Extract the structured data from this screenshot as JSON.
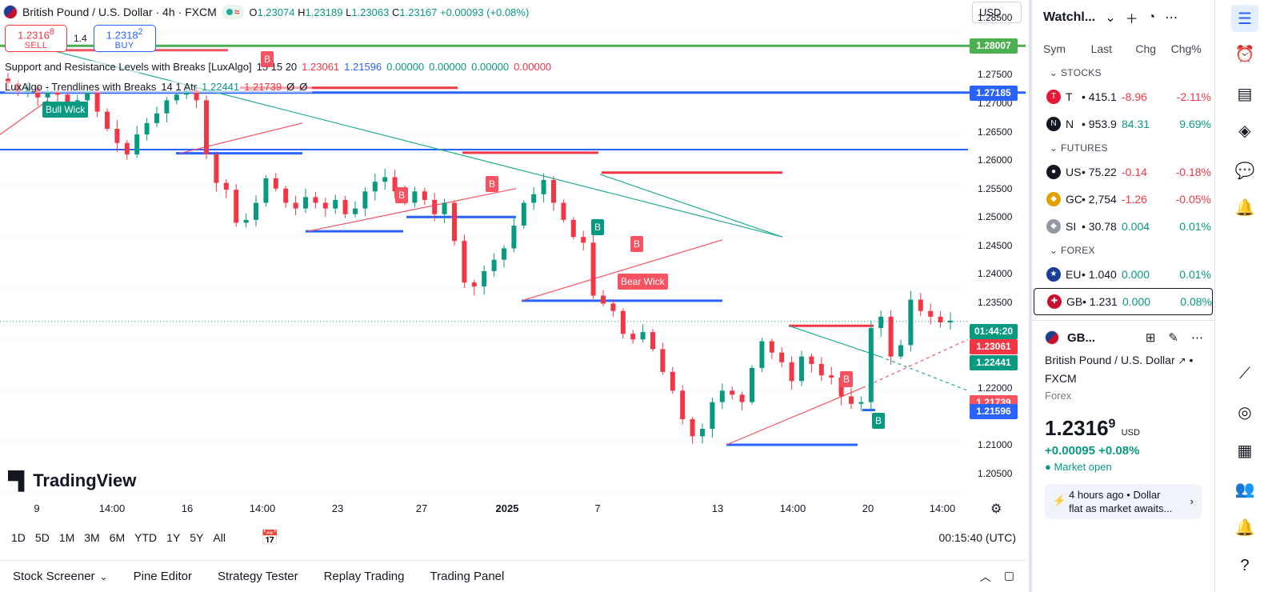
{
  "header": {
    "symbol_title": "British Pound / U.S. Dollar · 4h · FXCM",
    "market_status_icon": "circle-dot",
    "wave_icon": "≈",
    "ohlc": {
      "open_label": "O",
      "open": "1.23074",
      "high_label": "H",
      "high": "1.23189",
      "low_label": "L",
      "low": "1.23063",
      "close_label": "C",
      "close": "1.23167",
      "change": "+0.00093 (+0.08%)"
    },
    "currency_button": "USD"
  },
  "trade": {
    "sell_price": "1.2316",
    "sell_price_sup": "8",
    "sell_label": "SELL",
    "spread": "1.4",
    "buy_price": "1.2318",
    "buy_price_sup": "2",
    "buy_label": "BUY"
  },
  "indicators": [
    {
      "name": "Support and Resistance Levels with Breaks [LuxAlgo]",
      "params": "15 15 20",
      "values": [
        {
          "v": "1.23061",
          "c": "#f23645"
        },
        {
          "v": "1.21596",
          "c": "#2962ff"
        },
        {
          "v": "0.00000",
          "c": "#089981"
        },
        {
          "v": "0.00000",
          "c": "#089981"
        },
        {
          "v": "0.00000",
          "c": "#089981"
        },
        {
          "v": "0.00000",
          "c": "#f23645"
        }
      ]
    },
    {
      "name": "LuxAlgo - Trendlines with Breaks",
      "params": "14 1 Atr",
      "values": [
        {
          "v": "1.22441",
          "c": "#089981"
        },
        {
          "v": "1.21739",
          "c": "#f23645"
        },
        {
          "v": "Ø",
          "c": "#131722"
        },
        {
          "v": "Ø",
          "c": "#131722"
        }
      ]
    }
  ],
  "price_axis": {
    "labels": [
      "1.28500",
      "1.27500",
      "1.27000",
      "1.26500",
      "1.26000",
      "1.25500",
      "1.25000",
      "1.24500",
      "1.24000",
      "1.23500",
      "1.22500",
      "1.22000",
      "1.21000",
      "1.20500"
    ],
    "tags": [
      {
        "text": "1.28007",
        "color": "#4caf50",
        "price": 1.28007
      },
      {
        "text": "1.27185",
        "color": "#2962ff",
        "price": 1.27185
      },
      {
        "text": "01:44:20",
        "color": "#089981",
        "price": 1.23167
      },
      {
        "text": "1.23061",
        "color": "#f23645",
        "price": 1.23061
      },
      {
        "text": "1.22441",
        "color": "#089981",
        "price": 1.22441
      },
      {
        "text": "1.21739",
        "color": "#f7525f",
        "price": 1.21739
      },
      {
        "text": "1.21596",
        "color": "#2962ff",
        "price": 1.21596
      }
    ]
  },
  "time_axis": {
    "labels": [
      {
        "text": "9",
        "bold": false
      },
      {
        "text": "14:00",
        "bold": false
      },
      {
        "text": "16",
        "bold": false
      },
      {
        "text": "14:00",
        "bold": false
      },
      {
        "text": "23",
        "bold": false
      },
      {
        "text": "27",
        "bold": false
      },
      {
        "text": "2025",
        "bold": true
      },
      {
        "text": "7",
        "bold": false
      },
      {
        "text": "13",
        "bold": false
      },
      {
        "text": "14:00",
        "bold": false
      },
      {
        "text": "20",
        "bold": false
      },
      {
        "text": "14:00",
        "bold": false
      }
    ]
  },
  "chart_labels": {
    "bull_wick": "Bull Wick",
    "bear_wick": "Bear Wick",
    "break_b": "B",
    "logo": "TradingView"
  },
  "range_bar": {
    "ranges": [
      "1D",
      "5D",
      "1M",
      "3M",
      "6M",
      "YTD",
      "1Y",
      "5Y",
      "All"
    ],
    "calendar_icon": "calendar-range",
    "clock": "00:15:40 (UTC)"
  },
  "panel_bar": {
    "items": [
      "Stock Screener",
      "Pine Editor",
      "Strategy Tester",
      "Replay Trading",
      "Trading Panel"
    ]
  },
  "watchlist": {
    "title": "Watchl...",
    "columns": [
      "Sym",
      "Last",
      "Chg",
      "Chg%"
    ],
    "sections": [
      {
        "name": "STOCKS",
        "rows": [
          {
            "icon": "tesla",
            "icon_color": "#e31937",
            "sym": "T",
            "last": "415.1",
            "chg": "-8.96",
            "chgp": "-2.11%",
            "up": false
          },
          {
            "icon": "netflix",
            "icon_color": "#131722",
            "sym": "N",
            "last": "953.9",
            "chg": "84.31",
            "chgp": "9.69%",
            "up": true
          }
        ]
      },
      {
        "name": "FUTURES",
        "rows": [
          {
            "icon": "oil-drop",
            "icon_color": "#131722",
            "sym": "US",
            "last": "75.22",
            "chg": "-0.14",
            "chgp": "-0.18%",
            "up": false
          },
          {
            "icon": "gold",
            "icon_color": "#e0a100",
            "sym": "GC",
            "last": "2,754",
            "chg": "-1.26",
            "chgp": "-0.05%",
            "up": false
          },
          {
            "icon": "silver",
            "icon_color": "#9598a1",
            "sym": "SI",
            "last": "30.78",
            "chg": "0.004",
            "chgp": "0.01%",
            "up": true
          }
        ]
      },
      {
        "name": "FOREX",
        "rows": [
          {
            "icon": "eu-flag",
            "icon_color": "#1c3f94",
            "sym": "EU",
            "last": "1.040",
            "chg": "0.000",
            "chgp": "0.01%",
            "up": true
          },
          {
            "icon": "gb-flag",
            "icon_color": "#c8102e",
            "sym": "GB",
            "last": "1.231",
            "chg": "0.000",
            "chgp": "0.08%",
            "up": true,
            "selected": true
          }
        ]
      }
    ]
  },
  "details": {
    "ticker": "GB...",
    "full_name": "British Pound / U.S. Dollar",
    "exchange": "FXCM",
    "type": "Forex",
    "price": "1.2316",
    "price_sup": "9",
    "currency": "USD",
    "change": "+0.00095",
    "change_pct": "+0.08%",
    "market_status": "Market open",
    "news_time": "4 hours ago",
    "news_source": "Dollar",
    "news_text": "flat as market awaits..."
  },
  "chart_data": {
    "type": "candlestick",
    "title": "British Pound / U.S. Dollar · 4h · FXCM",
    "ylim": [
      1.2015,
      1.2865
    ],
    "x_ticks": [
      "9",
      "14:00",
      "16",
      "14:00",
      "23",
      "27",
      "2025",
      "7",
      "13",
      "14:00",
      "20",
      "14:00"
    ],
    "y_ticks": [
      1.285,
      1.275,
      1.27,
      1.265,
      1.26,
      1.255,
      1.25,
      1.245,
      1.24,
      1.235,
      1.225,
      1.22,
      1.21,
      1.205
    ],
    "close_path": [
      1.2735,
      1.272,
      1.2728,
      1.271,
      1.272,
      1.2715,
      1.2695,
      1.2705,
      1.272,
      1.2685,
      1.2655,
      1.263,
      1.261,
      1.2645,
      1.2665,
      1.2682,
      1.2705,
      1.2715,
      1.2722,
      1.2705,
      1.261,
      1.256,
      1.2548,
      1.249,
      1.2495,
      1.2525,
      1.2568,
      1.255,
      1.2525,
      1.2515,
      1.2535,
      1.2525,
      1.2515,
      1.253,
      1.2505,
      1.2515,
      1.2545,
      1.2562,
      1.257,
      1.2545,
      1.2525,
      1.2545,
      1.253,
      1.2505,
      1.2525,
      1.2458,
      1.2385,
      1.2378,
      1.2405,
      1.2425,
      1.2445,
      1.2485,
      1.2525,
      1.254,
      1.2565,
      1.2525,
      1.2495,
      1.2465,
      1.2455,
      1.2362,
      1.2348,
      1.2335,
      1.2295,
      1.2285,
      1.2298,
      1.2268,
      1.2228,
      1.2195,
      1.2145,
      1.2115,
      1.2128,
      1.2175,
      1.2195,
      1.2188,
      1.2175,
      1.2235,
      1.2282,
      1.2262,
      1.2245,
      1.2212,
      1.2255,
      1.2242,
      1.2222,
      1.2218,
      1.2185,
      1.2172,
      1.2175,
      1.2305,
      1.2325,
      1.2255,
      1.2275,
      1.2355,
      1.2335,
      1.2325,
      1.2315,
      1.2318
    ],
    "levels": [
      {
        "name": "resistance",
        "price": 1.28007,
        "color": "#4caf50"
      },
      {
        "name": "support",
        "price": 1.27185,
        "color": "#2962ff"
      },
      {
        "name": "support",
        "price": 1.26185,
        "color": "#2962ff"
      }
    ]
  }
}
